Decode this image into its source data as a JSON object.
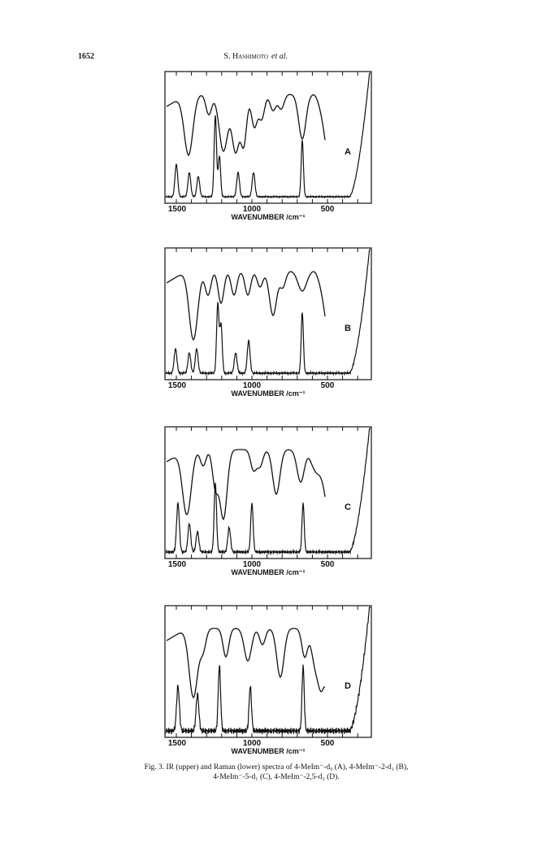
{
  "header": {
    "page_number": "1652",
    "author": "S. Hashimoto",
    "et_al": "et al."
  },
  "panels": [
    {
      "label": "A",
      "ticks": [
        "1500",
        "1000",
        "500"
      ],
      "axis_label": "WAVENUMBER  /cm⁻¹"
    },
    {
      "label": "B",
      "ticks": [
        "1500",
        "1000",
        "500"
      ],
      "axis_label": "WAVENUMBER  /cm⁻¹"
    },
    {
      "label": "C",
      "ticks": [
        "1500",
        "1000",
        "500"
      ],
      "axis_label": "WAVENUMBER  /cm⁻¹"
    },
    {
      "label": "D",
      "ticks": [
        "1500",
        "1000",
        "500"
      ],
      "axis_label": "WAVENUMBER  /cm⁻¹"
    }
  ],
  "caption": [
    "Fig. 3. IR (upper) and Raman (lower) spectra of 4-MeIm⁻-d₀ (A), 4-MeIm⁻-2-d₁ (B),",
    "4-MeIm⁻-5-d₁ (C), 4-MeIm⁻-2,5-d₂ (D)."
  ]
}
